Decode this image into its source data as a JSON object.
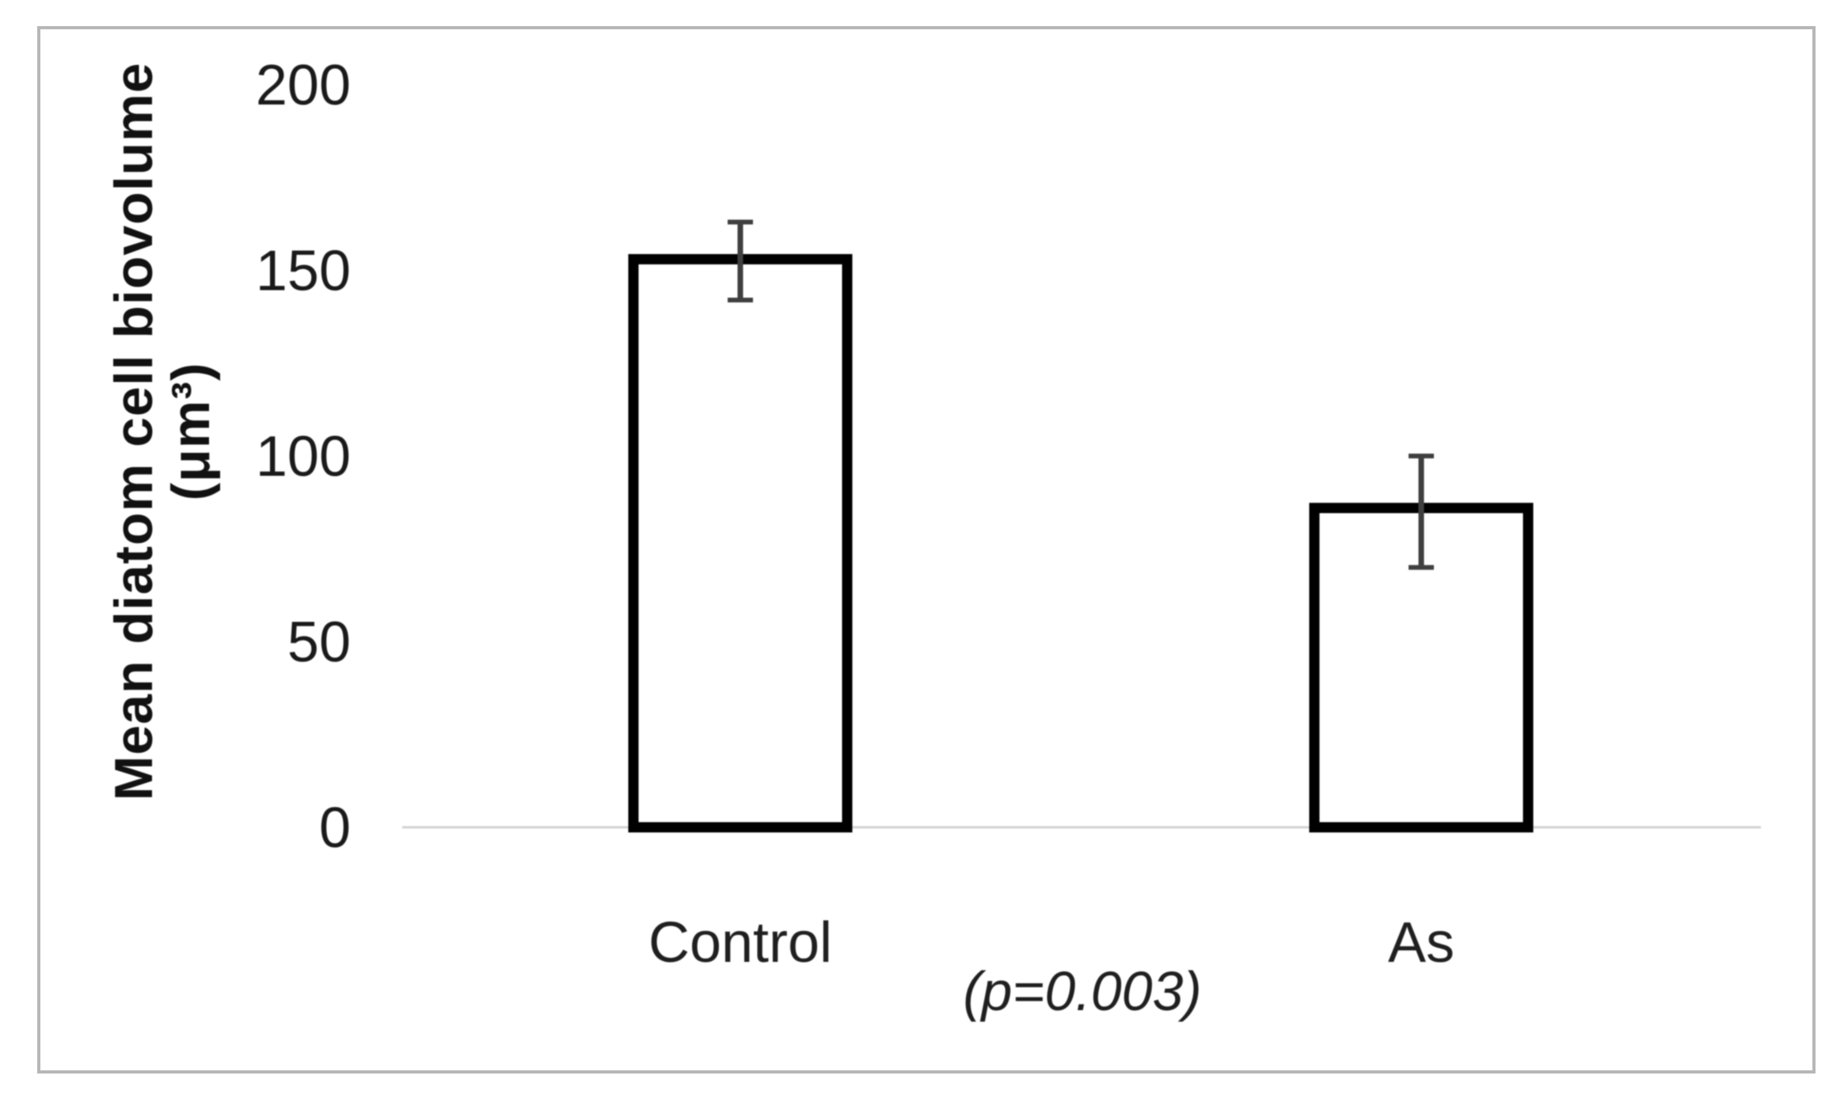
{
  "chart_data": {
    "type": "bar",
    "categories": [
      "Control",
      "As"
    ],
    "values": [
      153,
      86
    ],
    "error_plus": [
      10,
      14
    ],
    "error_minus": [
      11,
      16
    ],
    "title": "",
    "xlabel": "",
    "ylabel_line1": "Mean diatom cell biovolume",
    "ylabel_line2": "(μm³)",
    "yticks": [
      0,
      50,
      100,
      150,
      200
    ],
    "ylim": [
      0,
      200
    ],
    "annotation": "(p=0.003)",
    "legend": "none",
    "grid": "off",
    "colors": {
      "bar_fill": "#ffffff",
      "bar_stroke": "#000000",
      "error_bar": "#3f3f3f",
      "baseline_axis": "#d2d2d2",
      "tick_text": "#1a1a1a",
      "frame_border": "#b7b7b7",
      "background": "#ffffff"
    }
  }
}
